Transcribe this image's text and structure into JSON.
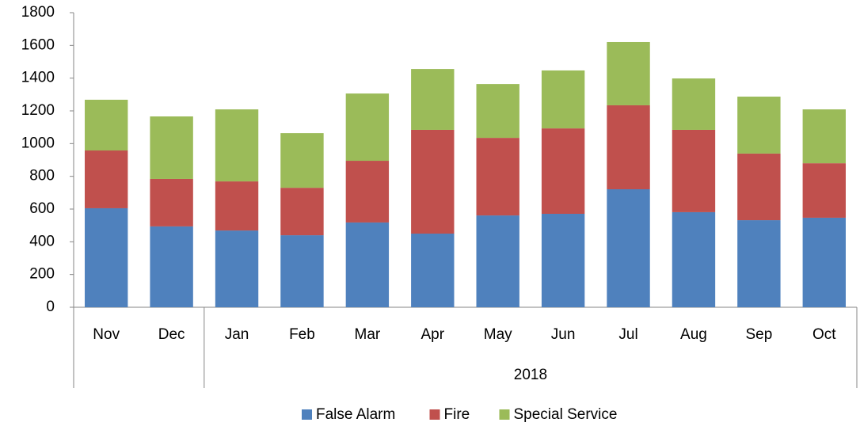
{
  "chart_data": {
    "type": "stacked_bar",
    "categories": [
      "Nov",
      "Dec",
      "Jan",
      "Feb",
      "Mar",
      "Apr",
      "May",
      "Jun",
      "Jul",
      "Aug",
      "Sep",
      "Oct"
    ],
    "groups": [
      null,
      null,
      "2018",
      "2018",
      "2018",
      "2018",
      "2018",
      "2018",
      "2018",
      "2018",
      "2018",
      "2018"
    ],
    "series": [
      {
        "name": "False Alarm",
        "color": "#4f81bd",
        "values": [
          605,
          494,
          469,
          440,
          518,
          450,
          561,
          571,
          721,
          581,
          532,
          547
        ]
      },
      {
        "name": "Fire",
        "color": "#c0504d",
        "values": [
          353,
          290,
          300,
          290,
          377,
          634,
          474,
          522,
          513,
          503,
          407,
          333
        ]
      },
      {
        "name": "Special Service",
        "color": "#9bbb59",
        "values": [
          310,
          382,
          440,
          334,
          411,
          372,
          329,
          354,
          387,
          314,
          348,
          329
        ]
      }
    ],
    "ylim": [
      0,
      1800
    ],
    "yticks": [
      0,
      200,
      400,
      600,
      800,
      1000,
      1200,
      1400,
      1600,
      1800
    ],
    "grid": false,
    "legend": "bottom"
  }
}
